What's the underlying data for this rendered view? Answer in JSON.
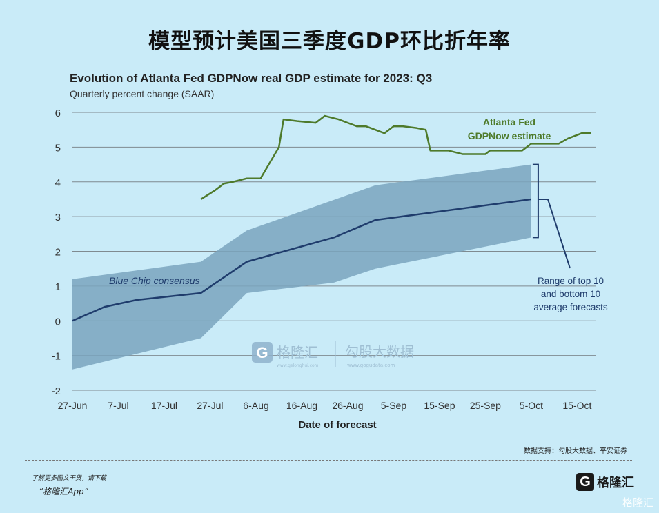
{
  "page": {
    "title": "模型预计美国三季度GDP环比折年率",
    "source_note": "数据支持：勾股大数据、平安证券",
    "footer_line1": "了解更多图文干货，请下载",
    "footer_line2": "“格隆汇App”",
    "footer_logo_text": "格隆汇",
    "footer_logo_letter": "G",
    "corner_watermark": "格隆汇",
    "watermark_brand": "格隆汇",
    "watermark_brand_url": "www.gelonghui.com",
    "watermark_data": "勾股大数据",
    "watermark_data_url": "www.gogudata.com"
  },
  "chart_data": {
    "type": "line",
    "title": "Evolution of Atlanta Fed GDPNow real GDP estimate for 2023: Q3",
    "subtitle": "Quarterly percent change (SAAR)",
    "xlabel": "Date of forecast",
    "ylabel": "",
    "x_tick_labels": [
      "27-Jun",
      "7-Jul",
      "17-Jul",
      "27-Jul",
      "6-Aug",
      "16-Aug",
      "26-Aug",
      "5-Sep",
      "15-Sep",
      "25-Sep",
      "5-Oct",
      "15-Oct"
    ],
    "xlim": [
      0,
      114
    ],
    "ylim": [
      -2,
      6
    ],
    "y_ticks": [
      "-2",
      "-1",
      "0",
      "1",
      "2",
      "3",
      "4",
      "5",
      "6"
    ],
    "grid": "horizontal",
    "colors": {
      "gdpnow": "#4e7a2b",
      "bluechip": "#1f3c6c",
      "band": "#7aa4be",
      "grid": "#7f8a90",
      "axis_text": "#333333"
    },
    "series": [
      {
        "name": "Atlanta Fed GDPNow estimate",
        "label_lines": [
          "Atlanta Fed",
          "GDPNow estimate"
        ],
        "points": [
          [
            28,
            3.5
          ],
          [
            31,
            3.75
          ],
          [
            33,
            3.95
          ],
          [
            35,
            4.0
          ],
          [
            38,
            4.1
          ],
          [
            41,
            4.1
          ],
          [
            45,
            5.0
          ],
          [
            46,
            5.8
          ],
          [
            49,
            5.75
          ],
          [
            53,
            5.7
          ],
          [
            55,
            5.9
          ],
          [
            58,
            5.8
          ],
          [
            62,
            5.6
          ],
          [
            64,
            5.6
          ],
          [
            68,
            5.4
          ],
          [
            70,
            5.6
          ],
          [
            72,
            5.6
          ],
          [
            75,
            5.55
          ],
          [
            77,
            5.5
          ],
          [
            78,
            4.9
          ],
          [
            82,
            4.9
          ],
          [
            85,
            4.8
          ],
          [
            90,
            4.8
          ],
          [
            91,
            4.9
          ],
          [
            98,
            4.9
          ],
          [
            100,
            5.1
          ],
          [
            106,
            5.1
          ],
          [
            108,
            5.25
          ],
          [
            111,
            5.4
          ],
          [
            113,
            5.4
          ]
        ]
      },
      {
        "name": "Blue Chip consensus",
        "label_lines": [
          "Blue Chip consensus"
        ],
        "points": [
          [
            0,
            0
          ],
          [
            7,
            0.4
          ],
          [
            14,
            0.6
          ],
          [
            28,
            0.8
          ],
          [
            38,
            1.7
          ],
          [
            57,
            2.4
          ],
          [
            66,
            2.9
          ],
          [
            100,
            3.5
          ]
        ]
      }
    ],
    "band": {
      "name": "Range of top 10 and bottom 10 average forecasts",
      "label_lines": [
        "Range of top 10",
        "and bottom 10",
        "average forecasts"
      ],
      "upper": [
        [
          0,
          1.2
        ],
        [
          28,
          1.7
        ],
        [
          38,
          2.6
        ],
        [
          66,
          3.9
        ],
        [
          100,
          4.5
        ]
      ],
      "lower": [
        [
          0,
          -1.4
        ],
        [
          28,
          -0.5
        ],
        [
          38,
          0.8
        ],
        [
          57,
          1.1
        ],
        [
          66,
          1.5
        ],
        [
          100,
          2.4
        ]
      ]
    }
  }
}
